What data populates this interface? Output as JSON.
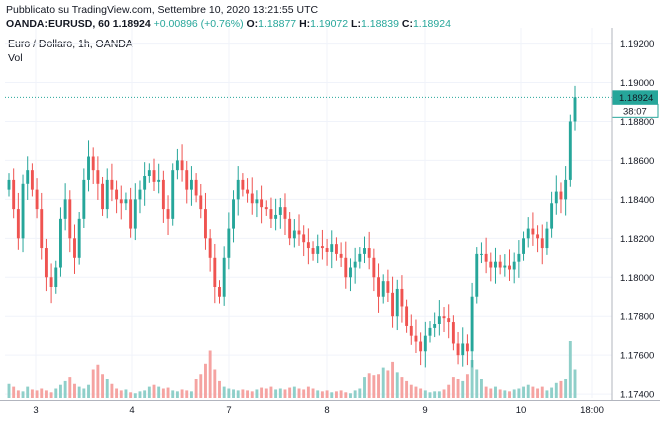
{
  "header": {
    "published": "Pubblicato su TradingView.com, Settembre 10, 2020 13:21:55 UTC",
    "symbol": "OANDA:EURUSD, 60",
    "last": "1.18924",
    "change": "+0.00896 (+0.76%)",
    "open_label": "O:",
    "open": "1.18877",
    "high_label": "H:",
    "high": "1.19072",
    "low_label": "L:",
    "low": "1.18839",
    "close_label": "C:",
    "close": "1.18924"
  },
  "legend": {
    "title": "Euro / Dollaro, 1h, OANDA",
    "vol": "Vol"
  },
  "colors": {
    "up": "#26a69a",
    "down": "#ef5350",
    "vol_up": "#8fcfc9",
    "vol_down": "#f5a3a1",
    "grid": "#f0f3fa",
    "axis": "#b2b5be",
    "last_price_line": "#26a69a"
  },
  "chart_data": {
    "type": "candlestick",
    "x_ticks": [
      "3",
      "4",
      "7",
      "8",
      "9",
      "10",
      "18:00"
    ],
    "y_ticks": [
      "1.19200",
      "1.19000",
      "1.18800",
      "1.18600",
      "1.18400",
      "1.18200",
      "1.18000",
      "1.17800",
      "1.17600",
      "1.17400"
    ],
    "ylim": [
      1.1738,
      1.1928
    ],
    "last_price_label": "1.18924",
    "countdown_label": "38:07",
    "candles_close": [
      1.185,
      1.1835,
      1.182,
      1.1848,
      1.1855,
      1.1845,
      1.1835,
      1.1815,
      1.18,
      1.1795,
      1.1805,
      1.183,
      1.184,
      1.182,
      1.181,
      1.183,
      1.185,
      1.1862,
      1.1855,
      1.1848,
      1.1835,
      1.185,
      1.1845,
      1.184,
      1.1838,
      1.184,
      1.1825,
      1.184,
      1.1845,
      1.1852,
      1.1855,
      1.1849,
      1.185,
      1.1835,
      1.183,
      1.1855,
      1.186,
      1.1855,
      1.1845,
      1.185,
      1.1842,
      1.1835,
      1.182,
      1.181,
      1.1795,
      1.179,
      1.181,
      1.1825,
      1.184,
      1.185,
      1.1845,
      1.1843,
      1.1838,
      1.184,
      1.1836,
      1.1835,
      1.183,
      1.1832,
      1.1836,
      1.183,
      1.182,
      1.1824,
      1.1822,
      1.1818,
      1.1815,
      1.1812,
      1.1816,
      1.1815,
      1.1813,
      1.1817,
      1.1812,
      1.181,
      1.18,
      1.1805,
      1.1808,
      1.1812,
      1.1815,
      1.181,
      1.18,
      1.179,
      1.1798,
      1.1792,
      1.178,
      1.1794,
      1.1785,
      1.1775,
      1.177,
      1.1767,
      1.1762,
      1.177,
      1.1774,
      1.1776,
      1.178,
      1.1779,
      1.1777,
      1.1766,
      1.176,
      1.1766,
      1.1762,
      1.179,
      1.1812,
      1.1812,
      1.1808,
      1.1805,
      1.1808,
      1.1805,
      1.1806,
      1.1804,
      1.1808,
      1.1812,
      1.182,
      1.1825,
      1.1822,
      1.182,
      1.1815,
      1.1825,
      1.1838,
      1.1844,
      1.184,
      1.185,
      1.188,
      1.18924
    ],
    "volume_relative": [
      0.15,
      0.12,
      0.08,
      0.07,
      0.12,
      0.09,
      0.08,
      0.1,
      0.08,
      0.06,
      0.1,
      0.14,
      0.18,
      0.22,
      0.15,
      0.12,
      0.1,
      0.14,
      0.3,
      0.35,
      0.25,
      0.2,
      0.15,
      0.1,
      0.08,
      0.09,
      0.06,
      0.05,
      0.07,
      0.08,
      0.12,
      0.14,
      0.12,
      0.1,
      0.11,
      0.08,
      0.07,
      0.09,
      0.08,
      0.07,
      0.2,
      0.25,
      0.36,
      0.5,
      0.3,
      0.18,
      0.12,
      0.1,
      0.09,
      0.08,
      0.09,
      0.08,
      0.07,
      0.09,
      0.11,
      0.1,
      0.12,
      0.09,
      0.1,
      0.09,
      0.11,
      0.12,
      0.1,
      0.09,
      0.12,
      0.1,
      0.08,
      0.07,
      0.08,
      0.06,
      0.07,
      0.08,
      0.06,
      0.05,
      0.08,
      0.1,
      0.22,
      0.26,
      0.24,
      0.25,
      0.32,
      0.29,
      0.38,
      0.27,
      0.22,
      0.18,
      0.14,
      0.12,
      0.1,
      0.08,
      0.06,
      0.07,
      0.07,
      0.09,
      0.14,
      0.22,
      0.2,
      0.18,
      0.25,
      0.4,
      0.3,
      0.2,
      0.12,
      0.1,
      0.12,
      0.09,
      0.08,
      0.07,
      0.09,
      0.1,
      0.12,
      0.14,
      0.12,
      0.1,
      0.12,
      0.08,
      0.11,
      0.16,
      0.18,
      0.2,
      0.6,
      0.3
    ],
    "grid": true,
    "y_axis_position": "right"
  }
}
